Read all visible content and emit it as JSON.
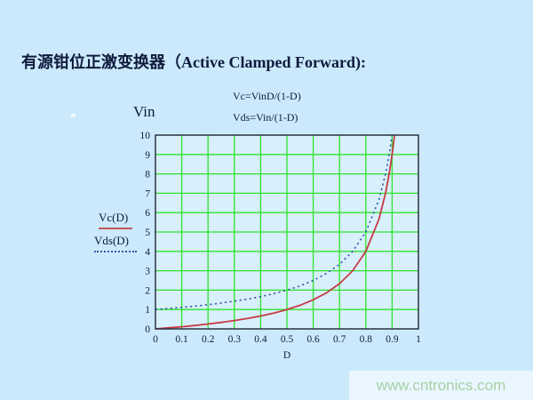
{
  "title": "有源钳位正激变换器（Active Clamped Forward):",
  "formulas": {
    "vc": "Vc=VinD/(1-D)",
    "vds": "Vds=Vin/(1-D)"
  },
  "vin_label": "Vin",
  "legend": {
    "items": [
      {
        "label": "Vc(D)",
        "style": "solid",
        "color": "#c4565e"
      },
      {
        "label": "Vds(D)",
        "style": "dotted",
        "color": "#3a57ae"
      }
    ],
    "position": "left-outside"
  },
  "watermark": "www.cntronics.com",
  "colors": {
    "background": "#cbe9fb",
    "plot_background": "#d8effc",
    "grid": "#2be42b",
    "frame": "#2a3340",
    "text": "#0e1a3c",
    "vc_curve": "#c53b43",
    "vds_curve": "#3a57ae",
    "watermark_text": "#a6d0a8"
  },
  "chart_data": {
    "type": "line",
    "title": "",
    "xlabel": "D",
    "ylabel": "",
    "xlim": [
      0,
      1
    ],
    "ylim": [
      0,
      10
    ],
    "grid": true,
    "grid_color": "#2be42b",
    "x_tick_labels": [
      "0",
      "0.1",
      "0.2",
      "0.3",
      "0.4",
      "0.5",
      "0.6",
      "0.7",
      "0.8",
      "0.9",
      "1"
    ],
    "y_tick_labels": [
      "0",
      "1",
      "2",
      "3",
      "4",
      "5",
      "6",
      "7",
      "8",
      "9",
      "10"
    ],
    "series": [
      {
        "name": "Vc(D)",
        "formula": "Vc = Vin*D/(1-D)",
        "color": "#c53b43",
        "style": "solid",
        "points": [
          [
            0,
            0
          ],
          [
            0.05,
            0.053
          ],
          [
            0.1,
            0.111
          ],
          [
            0.15,
            0.176
          ],
          [
            0.2,
            0.25
          ],
          [
            0.25,
            0.333
          ],
          [
            0.3,
            0.429
          ],
          [
            0.35,
            0.538
          ],
          [
            0.4,
            0.667
          ],
          [
            0.45,
            0.818
          ],
          [
            0.5,
            1.0
          ],
          [
            0.55,
            1.222
          ],
          [
            0.6,
            1.5
          ],
          [
            0.65,
            1.857
          ],
          [
            0.7,
            2.333
          ],
          [
            0.75,
            3.0
          ],
          [
            0.8,
            4.0
          ],
          [
            0.85,
            5.667
          ],
          [
            0.875,
            7.0
          ],
          [
            0.89,
            8.09
          ],
          [
            0.9,
            9.0
          ],
          [
            0.909,
            10.0
          ]
        ]
      },
      {
        "name": "Vds(D)",
        "formula": "Vds = Vin/(1-D)",
        "color": "#3a57ae",
        "style": "dotted",
        "points": [
          [
            0,
            1.0
          ],
          [
            0.05,
            1.053
          ],
          [
            0.1,
            1.111
          ],
          [
            0.15,
            1.176
          ],
          [
            0.2,
            1.25
          ],
          [
            0.25,
            1.333
          ],
          [
            0.3,
            1.429
          ],
          [
            0.35,
            1.538
          ],
          [
            0.4,
            1.667
          ],
          [
            0.45,
            1.818
          ],
          [
            0.5,
            2.0
          ],
          [
            0.55,
            2.222
          ],
          [
            0.6,
            2.5
          ],
          [
            0.65,
            2.857
          ],
          [
            0.7,
            3.333
          ],
          [
            0.75,
            4.0
          ],
          [
            0.8,
            5.0
          ],
          [
            0.85,
            6.667
          ],
          [
            0.875,
            8.0
          ],
          [
            0.89,
            9.09
          ],
          [
            0.9,
            10.0
          ]
        ]
      }
    ]
  }
}
